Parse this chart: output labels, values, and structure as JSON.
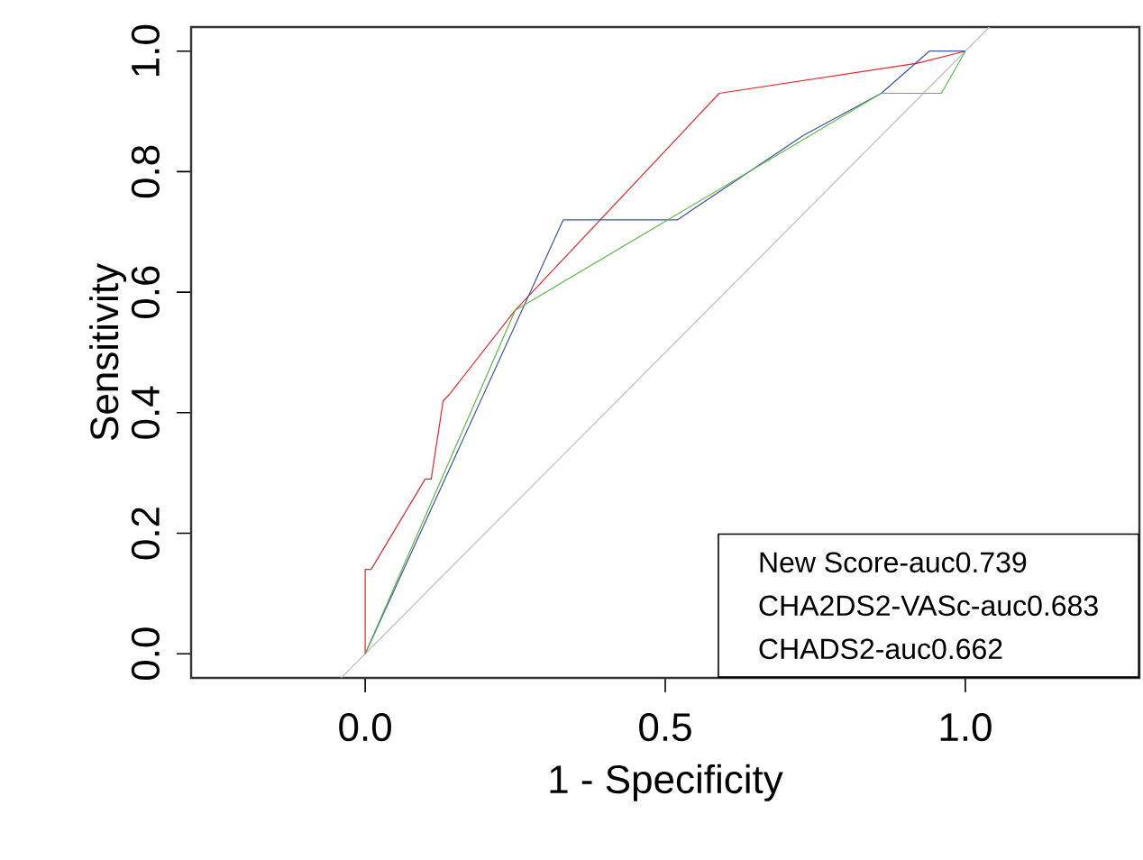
{
  "chart_data": {
    "type": "line",
    "xlabel": "1 - Specificity",
    "ylabel": "Sensitivity",
    "xlim": [
      -0.29,
      1.29
    ],
    "ylim": [
      -0.04,
      1.04
    ],
    "xticks": [
      {
        "value": 0,
        "label": "0.0"
      },
      {
        "value": 0.5,
        "label": "0.5"
      },
      {
        "value": 1,
        "label": "1.0"
      }
    ],
    "yticks": [
      {
        "value": 0,
        "label": "0.0"
      },
      {
        "value": 0.2,
        "label": "0.2"
      },
      {
        "value": 0.4,
        "label": "0.4"
      },
      {
        "value": 0.6,
        "label": "0.6"
      },
      {
        "value": 0.8,
        "label": "0.8"
      },
      {
        "value": 1,
        "label": "1.0"
      }
    ],
    "annotations": [
      "New Score-auc0.739",
      "CHA2DS2-VASc-auc0.683",
      "CHADS2-auc0.662"
    ],
    "series": [
      {
        "color": "#bebebe",
        "x": [
          -0.04,
          1.04
        ],
        "values": [
          -0.04,
          1.04
        ]
      },
      {
        "color": "#e8262a",
        "x": [
          0,
          0,
          0.01,
          0.1,
          0.11,
          0.13,
          0.14,
          0.25,
          0.59,
          0.92,
          1
        ],
        "values": [
          0,
          0.14,
          0.14,
          0.29,
          0.29,
          0.42,
          0.43,
          0.57,
          0.93,
          0.98,
          1
        ]
      },
      {
        "color": "#3a54a4",
        "x": [
          0,
          0.33,
          0.52,
          0.73,
          0.86,
          0.94,
          1
        ],
        "values": [
          0,
          0.72,
          0.72,
          0.86,
          0.93,
          1,
          1
        ]
      },
      {
        "color": "#5bb946",
        "x": [
          0,
          0.25,
          0.86,
          0.96,
          1,
          1
        ],
        "values": [
          0,
          0.57,
          0.93,
          0.93,
          1,
          1
        ]
      }
    ]
  }
}
